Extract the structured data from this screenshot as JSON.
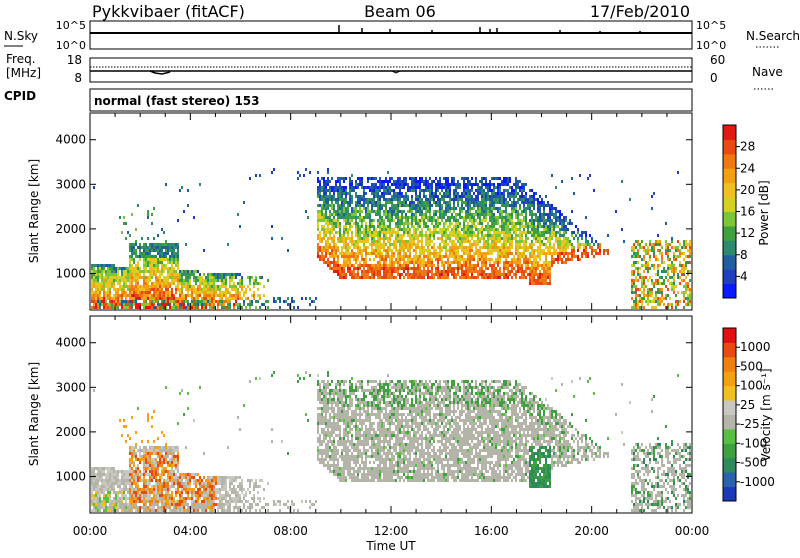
{
  "header": {
    "station": "Pykkvibaer (fitACF)",
    "beam": "Beam 06",
    "date": "17/Feb/2010"
  },
  "nsky_panel": {
    "left_label": "N.Sky",
    "right_label": "N.Search",
    "left_ticks": [
      "10^5",
      "10^0"
    ],
    "right_ticks": [
      "10^5",
      "10^0"
    ]
  },
  "freq_panel": {
    "left_label_1": "Freq.",
    "left_label_2": "[MHz]",
    "right_label": "Nave",
    "left_ticks": [
      "18",
      "8"
    ],
    "right_ticks": [
      "60",
      "0"
    ]
  },
  "cpid": {
    "label": "CPID",
    "value": "normal (fast stereo) 153"
  },
  "chart_data": [
    {
      "type": "heatmap",
      "name": "power",
      "ylabel": "Slant Range [km]",
      "xlabel": "Time UT",
      "y_ticks": [
        1000,
        2000,
        3000,
        4000
      ],
      "ylim": [
        180,
        4600
      ],
      "x_ticks": [
        "00:00",
        "04:00",
        "08:00",
        "12:00",
        "16:00",
        "20:00",
        "00:00"
      ],
      "xlim_hours": [
        0,
        24
      ],
      "colorbar": {
        "label": "Power [dB]",
        "ticks": [
          4,
          8,
          12,
          16,
          20,
          24,
          28
        ],
        "range": [
          0,
          32
        ],
        "colors": [
          "#0a1aff",
          "#1f3fbf",
          "#1f5fa0",
          "#2e8a6e",
          "#3fa040",
          "#7cc63a",
          "#d4d21e",
          "#f0c020",
          "#f5a010",
          "#f07810",
          "#e84a10",
          "#e01a10"
        ]
      }
    },
    {
      "type": "heatmap",
      "name": "velocity",
      "ylabel": "Slant Range [km]",
      "xlabel": "Time UT",
      "y_ticks": [
        1000,
        2000,
        3000,
        4000
      ],
      "ylim": [
        180,
        4600
      ],
      "x_ticks": [
        "00:00",
        "04:00",
        "08:00",
        "12:00",
        "16:00",
        "20:00",
        "00:00"
      ],
      "xlim_hours": [
        0,
        24
      ],
      "colorbar": {
        "label": "Velocity [m s⁻¹]",
        "ticks": [
          1000,
          500,
          100,
          25,
          -25,
          -100,
          -500,
          -1000
        ],
        "colors": [
          "#1c3ab8",
          "#2a62b0",
          "#2e8a5a",
          "#3fa040",
          "#58c040",
          "#b4b4a8",
          "#c8c8c0",
          "#f0c020",
          "#f5a010",
          "#f08010",
          "#e84a10",
          "#e01010"
        ]
      }
    }
  ]
}
